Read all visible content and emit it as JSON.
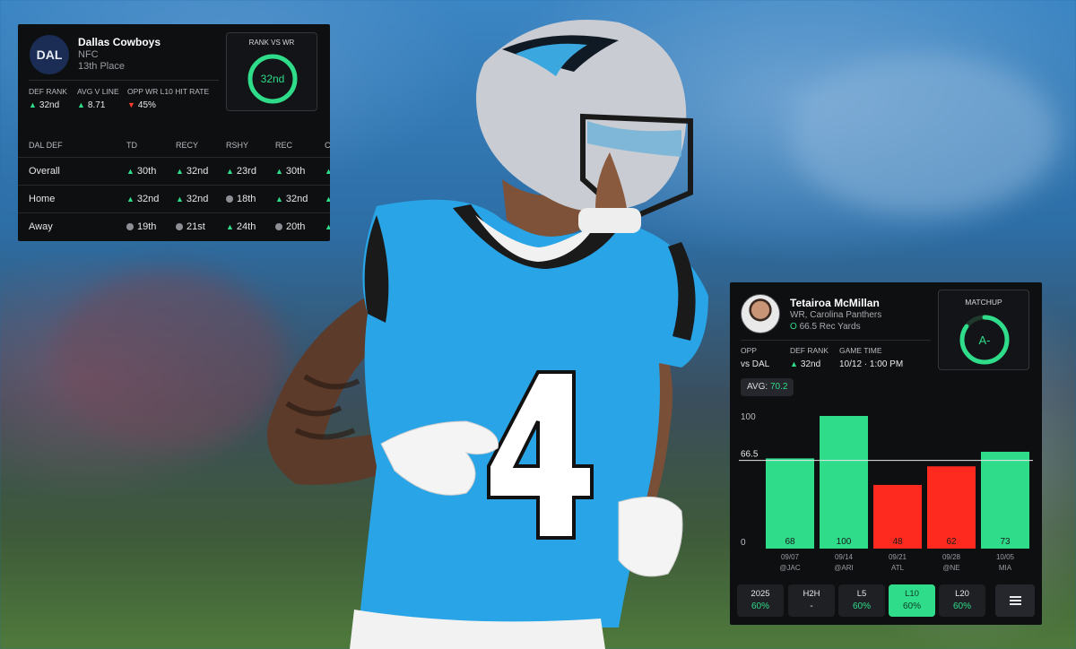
{
  "team_panel": {
    "logo_text": "DAL",
    "team_name": "Dallas Cowboys",
    "conference": "NFC",
    "place": "13th Place",
    "stats": [
      {
        "label": "DEF RANK",
        "value": "32nd",
        "trend": "up"
      },
      {
        "label": "AVG V LINE",
        "value": "8.71",
        "trend": "up"
      },
      {
        "label": "OPP WR L10 HIT RATE",
        "value": "45%",
        "trend": "down"
      }
    ],
    "rank_box": {
      "title": "RANK VS WR",
      "value": "32nd",
      "fill": 1.0
    },
    "table": {
      "headers": [
        "DAL DEF",
        "TD",
        "RECY",
        "RSHY",
        "REC",
        "C"
      ],
      "rows": [
        {
          "label": "Overall",
          "cells": [
            {
              "v": "30th",
              "t": "up"
            },
            {
              "v": "32nd",
              "t": "up"
            },
            {
              "v": "23rd",
              "t": "up"
            },
            {
              "v": "30th",
              "t": "up"
            },
            {
              "v": "",
              "t": "up"
            }
          ]
        },
        {
          "label": "Home",
          "cells": [
            {
              "v": "32nd",
              "t": "up"
            },
            {
              "v": "32nd",
              "t": "up"
            },
            {
              "v": "18th",
              "t": "neutral"
            },
            {
              "v": "32nd",
              "t": "up"
            },
            {
              "v": "",
              "t": "up"
            }
          ]
        },
        {
          "label": "Away",
          "cells": [
            {
              "v": "19th",
              "t": "neutral"
            },
            {
              "v": "21st",
              "t": "neutral"
            },
            {
              "v": "24th",
              "t": "up"
            },
            {
              "v": "20th",
              "t": "neutral"
            },
            {
              "v": "",
              "t": "up"
            }
          ]
        }
      ]
    }
  },
  "player_panel": {
    "name": "Tetairoa McMillan",
    "position_team": "WR, Carolina Panthers",
    "prop_prefix": "O",
    "prop_line": "66.5 Rec Yards",
    "stats": [
      {
        "label": "OPP",
        "value": "vs DAL"
      },
      {
        "label": "DEF RANK",
        "value": "32nd",
        "trend": "up"
      },
      {
        "label": "GAME TIME",
        "value": "10/12 · 1:00 PM"
      }
    ],
    "matchup": {
      "title": "MATCHUP",
      "grade": "A-",
      "fill": 0.85
    },
    "avg_label": "AVG:",
    "avg_value": "70.2",
    "filters": [
      {
        "label": "2025",
        "value": "60%",
        "active": false
      },
      {
        "label": "H2H",
        "value": "-",
        "active": false
      },
      {
        "label": "L5",
        "value": "60%",
        "active": false
      },
      {
        "label": "L10",
        "value": "60%",
        "active": true
      },
      {
        "label": "L20",
        "value": "60%",
        "active": false
      }
    ]
  },
  "chart_data": {
    "type": "bar",
    "categories": [
      "09/07 @JAC",
      "09/14 @ARI",
      "09/21 ATL",
      "09/28 @NE",
      "10/05 MIA"
    ],
    "dates": [
      "09/07",
      "09/14",
      "09/21",
      "09/28",
      "10/05"
    ],
    "opponents": [
      "@JAC",
      "@ARI",
      "ATL",
      "@NE",
      "MIA"
    ],
    "values": [
      68,
      100,
      48,
      62,
      73
    ],
    "hit": [
      true,
      true,
      false,
      false,
      true
    ],
    "line": 66.5,
    "line_label": "66.5",
    "ylim": [
      0,
      100
    ],
    "y_ticks": [
      "100",
      "0"
    ],
    "colors": {
      "over": "#2fdc8a",
      "under": "#ff2a1f",
      "line": "#e9e9ea"
    }
  }
}
